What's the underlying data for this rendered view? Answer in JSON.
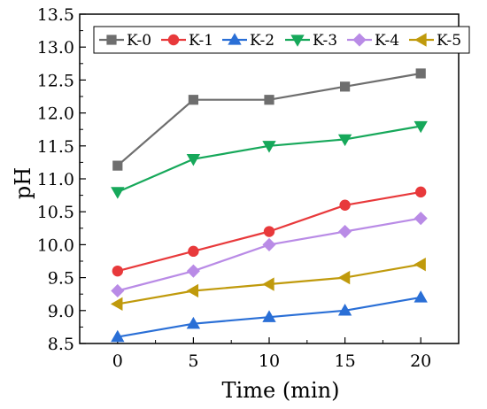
{
  "chart_data": {
    "type": "line",
    "xlabel": "Time (min)",
    "ylabel": "pH",
    "x": [
      0,
      5,
      10,
      15,
      20
    ],
    "xticks": [
      "0",
      "5",
      "10",
      "15",
      "20"
    ],
    "xlim": [
      -2.5,
      22.5
    ],
    "yticks": [
      "8.5",
      "9.0",
      "9.5",
      "10.0",
      "10.5",
      "11.0",
      "11.5",
      "12.0",
      "12.5",
      "13.0",
      "13.5"
    ],
    "ylim": [
      8.5,
      13.5
    ],
    "legend_position": "top",
    "series": [
      {
        "name": "K-0",
        "values": [
          11.2,
          12.2,
          12.2,
          12.4,
          12.6
        ],
        "color": "#6e6e6e",
        "marker": "square"
      },
      {
        "name": "K-1",
        "values": [
          9.6,
          9.9,
          10.2,
          10.6,
          10.8
        ],
        "color": "#e8393b",
        "marker": "circle"
      },
      {
        "name": "K-2",
        "values": [
          8.6,
          8.8,
          8.9,
          9.0,
          9.2
        ],
        "color": "#2a6fd6",
        "marker": "triangle-up"
      },
      {
        "name": "K-3",
        "values": [
          10.8,
          11.3,
          11.5,
          11.6,
          11.8
        ],
        "color": "#16a85a",
        "marker": "triangle-down"
      },
      {
        "name": "K-4",
        "values": [
          9.3,
          9.6,
          10.0,
          10.2,
          10.4
        ],
        "color": "#b98be6",
        "marker": "diamond"
      },
      {
        "name": "K-5",
        "values": [
          9.1,
          9.3,
          9.4,
          9.5,
          9.7
        ],
        "color": "#c09a0c",
        "marker": "triangle-left"
      }
    ]
  }
}
